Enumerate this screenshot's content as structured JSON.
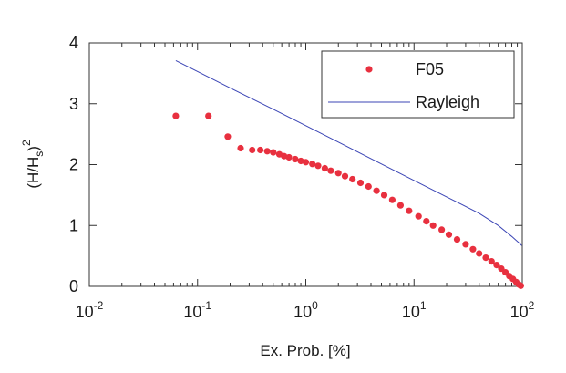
{
  "chart_data": {
    "type": "scatter",
    "xscale": "log",
    "xlim": [
      0.01,
      100
    ],
    "ylim": [
      0,
      4
    ],
    "grid": false,
    "legend_position": "top-right",
    "xlabel": "Ex. Prob. [%]",
    "ylabel": {
      "base": "(H/H",
      "sub": "s",
      "close": ")",
      "sup": "2"
    },
    "x_ticks": [
      {
        "value": 0.01,
        "base": "10",
        "exp": "-2"
      },
      {
        "value": 0.1,
        "base": "10",
        "exp": "-1"
      },
      {
        "value": 1,
        "base": "10",
        "exp": "0"
      },
      {
        "value": 10,
        "base": "10",
        "exp": "1"
      },
      {
        "value": 100,
        "base": "10",
        "exp": "2"
      }
    ],
    "y_ticks": [
      {
        "value": 0,
        "label": "0"
      },
      {
        "value": 1,
        "label": "1"
      },
      {
        "value": 2,
        "label": "2"
      },
      {
        "value": 3,
        "label": "3"
      },
      {
        "value": 4,
        "label": "4"
      }
    ],
    "series": [
      {
        "name": "F05",
        "kind": "scatter",
        "color": "#e8303f",
        "points": [
          [
            0.063,
            2.8
          ],
          [
            0.126,
            2.8
          ],
          [
            0.19,
            2.46
          ],
          [
            0.25,
            2.27
          ],
          [
            0.32,
            2.24
          ],
          [
            0.38,
            2.24
          ],
          [
            0.44,
            2.22
          ],
          [
            0.5,
            2.2
          ],
          [
            0.57,
            2.17
          ],
          [
            0.63,
            2.14
          ],
          [
            0.7,
            2.12
          ],
          [
            0.8,
            2.09
          ],
          [
            0.9,
            2.06
          ],
          [
            1.0,
            2.04
          ],
          [
            1.15,
            2.01
          ],
          [
            1.3,
            1.98
          ],
          [
            1.5,
            1.94
          ],
          [
            1.7,
            1.9
          ],
          [
            2.0,
            1.86
          ],
          [
            2.3,
            1.81
          ],
          [
            2.7,
            1.76
          ],
          [
            3.2,
            1.7
          ],
          [
            3.8,
            1.64
          ],
          [
            4.5,
            1.57
          ],
          [
            5.3,
            1.5
          ],
          [
            6.3,
            1.42
          ],
          [
            7.5,
            1.33
          ],
          [
            9.0,
            1.24
          ],
          [
            11,
            1.15
          ],
          [
            13,
            1.07
          ],
          [
            15,
            1.0
          ],
          [
            18,
            0.93
          ],
          [
            21,
            0.85
          ],
          [
            25,
            0.77
          ],
          [
            30,
            0.69
          ],
          [
            35,
            0.61
          ],
          [
            40,
            0.54
          ],
          [
            46,
            0.47
          ],
          [
            52,
            0.41
          ],
          [
            58,
            0.35
          ],
          [
            64,
            0.29
          ],
          [
            70,
            0.23
          ],
          [
            76,
            0.17
          ],
          [
            82,
            0.12
          ],
          [
            88,
            0.07
          ],
          [
            93,
            0.03
          ],
          [
            97,
            0.01
          ]
        ]
      },
      {
        "name": "Rayleigh",
        "kind": "line",
        "color": "#3b45b5",
        "x": [
          0.063,
          0.1,
          0.2,
          0.5,
          1,
          2,
          5,
          10,
          20,
          40,
          60,
          80,
          95,
          99
        ],
        "y": [
          3.71,
          3.53,
          3.26,
          2.91,
          2.64,
          2.37,
          2.01,
          1.74,
          1.47,
          1.2,
          1.0,
          0.82,
          0.7,
          0.67
        ]
      }
    ]
  }
}
